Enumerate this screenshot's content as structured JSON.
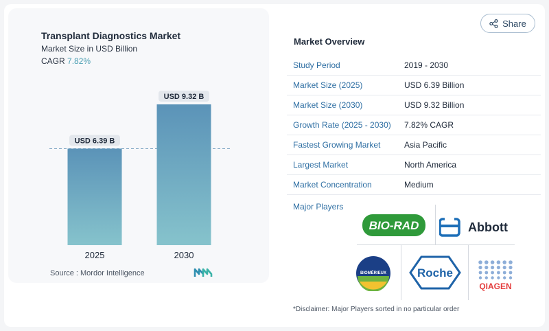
{
  "chart_data": {
    "type": "bar",
    "title": "Transplant Diagnostics Market",
    "subtitle": "Market Size in USD Billion",
    "cagr_label": "CAGR",
    "cagr_value": "7.82%",
    "categories": [
      "2025",
      "2030"
    ],
    "values": [
      6.39,
      9.32
    ],
    "data_labels": [
      "USD 6.39 B",
      "USD 9.32 B"
    ],
    "xlabel": "",
    "ylabel": "",
    "grid": false,
    "reference_line": 6.39,
    "colors": {
      "bar_top": "#5b93b8",
      "bar_bottom": "#86c3cc",
      "label_bg": "#e3e7ec",
      "dashed": "#7fa7c4"
    }
  },
  "source": "Source :  Mordor Intelligence",
  "share": {
    "label": "Share"
  },
  "overview": {
    "title": "Market Overview",
    "rows": [
      {
        "label": "Study Period",
        "value": "2019 - 2030"
      },
      {
        "label": "Market Size (2025)",
        "value": "USD 6.39 Billion"
      },
      {
        "label": "Market Size (2030)",
        "value": "USD 9.32 Billion"
      },
      {
        "label": "Growth Rate (2025 - 2030)",
        "value": "7.82% CAGR"
      },
      {
        "label": "Fastest Growing Market",
        "value": "Asia Pacific"
      },
      {
        "label": "Largest Market",
        "value": "North America"
      },
      {
        "label": "Market Concentration",
        "value": "Medium"
      }
    ],
    "players_label": "Major Players",
    "players": {
      "biorad": "BIO-RAD",
      "abbott": "Abbott",
      "biomerieux": "BIOMÉRIEUX",
      "roche": "Roche",
      "qiagen": "QIAGEN"
    },
    "disclaimer": "*Disclaimer: Major Players sorted in no particular order"
  }
}
